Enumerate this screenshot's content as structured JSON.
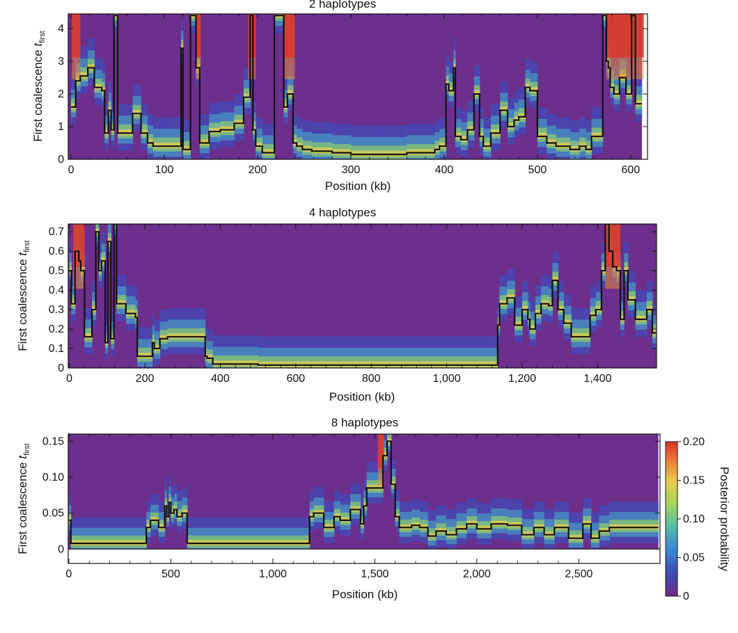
{
  "chart_data": [
    {
      "type": "heatmap",
      "title": "2 haplotypes",
      "xlabel": "Position (kb)",
      "ylabel_main": "First coalescence ",
      "ylabel_var": "t",
      "ylabel_sub": "first",
      "xlim": [
        -3,
        618
      ],
      "ylim": [
        0,
        4.45
      ],
      "xticks": [
        0,
        100,
        200,
        300,
        400,
        500,
        600
      ],
      "xtick_labels": [
        "0",
        "100",
        "200",
        "300",
        "400",
        "500",
        "600"
      ],
      "yticks": [
        0,
        1,
        2,
        3,
        4
      ],
      "ytick_labels": [
        "0",
        "1",
        "2",
        "3",
        "4"
      ],
      "hot_bands": [
        [
          1,
          10
        ],
        [
          134,
          139
        ],
        [
          190,
          198
        ],
        [
          229,
          240
        ],
        [
          574,
          614
        ]
      ],
      "line": {
        "x": [
          0,
          5,
          5,
          10,
          10,
          18,
          18,
          25,
          25,
          33,
          33,
          36,
          36,
          40,
          40,
          43,
          43,
          46,
          46,
          50,
          50,
          60,
          60,
          66,
          66,
          75,
          75,
          82,
          82,
          88,
          88,
          100,
          100,
          118,
          118,
          120,
          120,
          128,
          128,
          134,
          134,
          138,
          138,
          148,
          148,
          160,
          160,
          175,
          175,
          185,
          185,
          192,
          192,
          195,
          195,
          198,
          198,
          205,
          205,
          218,
          218,
          228,
          228,
          232,
          232,
          238,
          238,
          242,
          242,
          248,
          248,
          258,
          258,
          280,
          280,
          300,
          300,
          330,
          330,
          360,
          360,
          390,
          390,
          395,
          395,
          402,
          402,
          405,
          405,
          410,
          410,
          412,
          412,
          418,
          418,
          425,
          425,
          432,
          432,
          438,
          438,
          442,
          442,
          450,
          450,
          460,
          460,
          468,
          468,
          475,
          475,
          480,
          480,
          487,
          487,
          492,
          492,
          500,
          500,
          510,
          510,
          520,
          520,
          535,
          535,
          545,
          545,
          552,
          552,
          558,
          558,
          570,
          570,
          574,
          574,
          576,
          576,
          578,
          578,
          582,
          582,
          588,
          588,
          595,
          595,
          601,
          601,
          605,
          605,
          612
        ],
        "y": [
          1.6,
          1.6,
          2.4,
          2.4,
          2.55,
          2.55,
          2.8,
          2.8,
          2.2,
          2.2,
          2.1,
          2.1,
          0.8,
          0.8,
          1.5,
          1.5,
          0.9,
          0.9,
          4.4,
          4.4,
          0.8,
          0.8,
          0.8,
          0.8,
          1.4,
          1.4,
          0.8,
          0.8,
          0.5,
          0.5,
          0.4,
          0.4,
          0.4,
          0.4,
          3.4,
          3.4,
          0.3,
          0.3,
          4.4,
          4.4,
          2.8,
          2.8,
          0.5,
          0.5,
          0.85,
          0.85,
          0.9,
          0.9,
          1.1,
          1.1,
          1.9,
          1.9,
          4.4,
          4.4,
          0.9,
          0.9,
          0.4,
          0.4,
          0.2,
          0.2,
          4.4,
          4.4,
          1.6,
          1.6,
          2.0,
          2.0,
          0.5,
          0.5,
          0.4,
          0.4,
          0.3,
          0.3,
          0.25,
          0.25,
          0.2,
          0.2,
          0.15,
          0.15,
          0.15,
          0.15,
          0.2,
          0.2,
          0.3,
          0.3,
          0.4,
          0.4,
          2.3,
          2.3,
          2.1,
          2.1,
          2.8,
          2.8,
          0.7,
          0.7,
          0.6,
          0.6,
          0.9,
          0.9,
          2.0,
          2.0,
          0.7,
          0.7,
          0.4,
          0.4,
          0.8,
          0.8,
          1.5,
          1.5,
          1.0,
          1.0,
          1.2,
          1.2,
          1.3,
          1.3,
          2.2,
          2.2,
          2.1,
          2.1,
          0.7,
          0.7,
          0.5,
          0.5,
          0.4,
          0.4,
          0.3,
          0.3,
          0.4,
          0.4,
          0.3,
          0.3,
          0.7,
          0.7,
          4.4,
          4.4,
          3.0,
          3.0,
          2.8,
          2.8,
          2.2,
          2.2,
          2.0,
          2.0,
          2.5,
          2.5,
          2.0,
          2.0,
          4.4,
          4.4,
          1.7,
          1.7
        ]
      }
    },
    {
      "type": "heatmap",
      "title": "4 haplotypes",
      "xlabel": "Position (kb)",
      "ylabel_main": "First coalescence ",
      "ylabel_var": "t",
      "ylabel_sub": "first",
      "xlim": [
        -3,
        1556
      ],
      "ylim": [
        0,
        0.74
      ],
      "xticks": [
        0,
        200,
        400,
        600,
        800,
        1000,
        1200,
        1400
      ],
      "xtick_labels": [
        "0",
        "200",
        "400",
        "600",
        "800",
        "1,000",
        "1,200",
        "1,400"
      ],
      "yticks": [
        0,
        0.1,
        0.2,
        0.3,
        0.4,
        0.5,
        0.6,
        0.7
      ],
      "ytick_labels": [
        "0",
        "0.1",
        "0.2",
        "0.3",
        "0.4",
        "0.5",
        "0.6",
        "0.7"
      ],
      "hot_bands": [
        [
          10,
          40
        ],
        [
          1420,
          1460
        ]
      ],
      "line": {
        "x": [
          0,
          5,
          5,
          15,
          15,
          25,
          25,
          30,
          30,
          40,
          40,
          60,
          60,
          70,
          70,
          78,
          78,
          85,
          85,
          95,
          95,
          102,
          102,
          110,
          110,
          118,
          118,
          125,
          125,
          130,
          130,
          150,
          150,
          160,
          160,
          175,
          175,
          180,
          180,
          220,
          220,
          225,
          225,
          240,
          240,
          260,
          260,
          300,
          300,
          360,
          360,
          365,
          365,
          380,
          380,
          500,
          500,
          1135,
          1135,
          1140,
          1140,
          1160,
          1160,
          1180,
          1180,
          1200,
          1200,
          1215,
          1215,
          1220,
          1220,
          1235,
          1235,
          1250,
          1250,
          1270,
          1270,
          1280,
          1280,
          1295,
          1295,
          1310,
          1310,
          1330,
          1330,
          1340,
          1340,
          1380,
          1380,
          1395,
          1395,
          1410,
          1410,
          1420,
          1420,
          1430,
          1430,
          1440,
          1440,
          1450,
          1450,
          1460,
          1460,
          1470,
          1470,
          1480,
          1480,
          1500,
          1500,
          1530,
          1530,
          1545,
          1545,
          1555
        ],
        "y": [
          0.5,
          0.5,
          0.33,
          0.33,
          0.6,
          0.6,
          0.55,
          0.55,
          0.5,
          0.5,
          0.16,
          0.16,
          0.3,
          0.3,
          0.7,
          0.7,
          0.5,
          0.5,
          0.55,
          0.55,
          0.13,
          0.13,
          0.65,
          0.65,
          0.15,
          0.15,
          0.74,
          0.74,
          0.33,
          0.33,
          0.33,
          0.33,
          0.28,
          0.28,
          0.28,
          0.28,
          0.26,
          0.26,
          0.06,
          0.06,
          0.13,
          0.13,
          0.1,
          0.1,
          0.15,
          0.15,
          0.16,
          0.16,
          0.16,
          0.16,
          0.06,
          0.06,
          0.05,
          0.05,
          0.02,
          0.02,
          0.015,
          0.015,
          0.22,
          0.22,
          0.33,
          0.33,
          0.36,
          0.36,
          0.22,
          0.22,
          0.3,
          0.3,
          0.25,
          0.25,
          0.2,
          0.2,
          0.28,
          0.28,
          0.33,
          0.33,
          0.32,
          0.32,
          0.45,
          0.45,
          0.3,
          0.3,
          0.23,
          0.23,
          0.16,
          0.16,
          0.16,
          0.16,
          0.27,
          0.27,
          0.3,
          0.3,
          0.5,
          0.5,
          0.74,
          0.74,
          0.6,
          0.6,
          0.52,
          0.52,
          0.5,
          0.5,
          0.25,
          0.25,
          0.5,
          0.5,
          0.35,
          0.35,
          0.25,
          0.25,
          0.3,
          0.3,
          0.18,
          0.18,
          0.22
        ]
      }
    },
    {
      "type": "heatmap",
      "title": "8 haplotypes",
      "xlabel": "Position (kb)",
      "ylabel_main": "First coalescence ",
      "ylabel_var": "t",
      "ylabel_sub": "first",
      "xlim": [
        -3,
        2898
      ],
      "ylim": [
        -0.02,
        0.16
      ],
      "xticks": [
        0,
        500,
        1000,
        1500,
        2000,
        2500
      ],
      "xtick_labels": [
        "0",
        "500",
        "1,000",
        "1,500",
        "2,000",
        "2,500"
      ],
      "yticks": [
        0,
        0.05,
        0.1,
        0.15
      ],
      "ytick_labels": [
        "0",
        "0.05",
        "0.10",
        "0.15"
      ],
      "data_ymin": 0,
      "hot_bands": [
        [
          1515,
          1545
        ]
      ],
      "line": {
        "x": [
          0,
          10,
          10,
          380,
          380,
          400,
          400,
          440,
          440,
          470,
          470,
          480,
          480,
          490,
          490,
          500,
          500,
          515,
          515,
          530,
          530,
          555,
          555,
          580,
          580,
          1180,
          1180,
          1200,
          1200,
          1250,
          1250,
          1300,
          1300,
          1330,
          1330,
          1380,
          1380,
          1430,
          1430,
          1445,
          1445,
          1460,
          1460,
          1540,
          1540,
          1560,
          1560,
          1580,
          1580,
          1600,
          1600,
          1620,
          1620,
          1680,
          1680,
          1720,
          1720,
          1760,
          1760,
          1800,
          1800,
          1850,
          1850,
          1900,
          1900,
          1950,
          1950,
          2000,
          2000,
          2070,
          2070,
          2150,
          2150,
          2220,
          2220,
          2280,
          2280,
          2330,
          2330,
          2380,
          2380,
          2450,
          2450,
          2520,
          2520,
          2560,
          2560,
          2600,
          2600,
          2650,
          2650,
          2890
        ],
        "y": [
          0.04,
          0.04,
          0.008,
          0.008,
          0.03,
          0.03,
          0.04,
          0.04,
          0.03,
          0.03,
          0.06,
          0.06,
          0.045,
          0.045,
          0.065,
          0.065,
          0.05,
          0.05,
          0.055,
          0.055,
          0.045,
          0.045,
          0.05,
          0.05,
          0.008,
          0.008,
          0.045,
          0.045,
          0.05,
          0.05,
          0.03,
          0.03,
          0.045,
          0.045,
          0.04,
          0.04,
          0.055,
          0.055,
          0.035,
          0.035,
          0.06,
          0.06,
          0.085,
          0.085,
          0.13,
          0.13,
          0.15,
          0.15,
          0.09,
          0.09,
          0.045,
          0.045,
          0.03,
          0.03,
          0.033,
          0.033,
          0.03,
          0.03,
          0.018,
          0.018,
          0.025,
          0.025,
          0.02,
          0.02,
          0.028,
          0.028,
          0.035,
          0.035,
          0.028,
          0.028,
          0.035,
          0.035,
          0.033,
          0.033,
          0.02,
          0.02,
          0.03,
          0.03,
          0.02,
          0.02,
          0.03,
          0.03,
          0.015,
          0.015,
          0.035,
          0.035,
          0.015,
          0.015,
          0.025,
          0.025,
          0.03,
          0.03,
          0.03
        ]
      }
    }
  ],
  "colorbar": {
    "label": "Posterior probability",
    "ticks": [
      0,
      0.05,
      0.1,
      0.15,
      0.2
    ],
    "tick_labels": [
      "0",
      "0.05",
      "0.10",
      "0.15",
      "0.20"
    ],
    "colors": [
      "#6e2a8a",
      "#3c4fb8",
      "#3b86d6",
      "#53bca5",
      "#a9d55a",
      "#ecc94b",
      "#ef7a35",
      "#d8342a"
    ]
  },
  "colors": {
    "background_purple": "#6c2f8c",
    "line": "#111111",
    "blue": "#3553c6",
    "cyan": "#48a8c7",
    "green": "#8fcd6b",
    "yellow": "#e8cc4f",
    "orange": "#ee8a3a",
    "red": "#d9372b"
  }
}
